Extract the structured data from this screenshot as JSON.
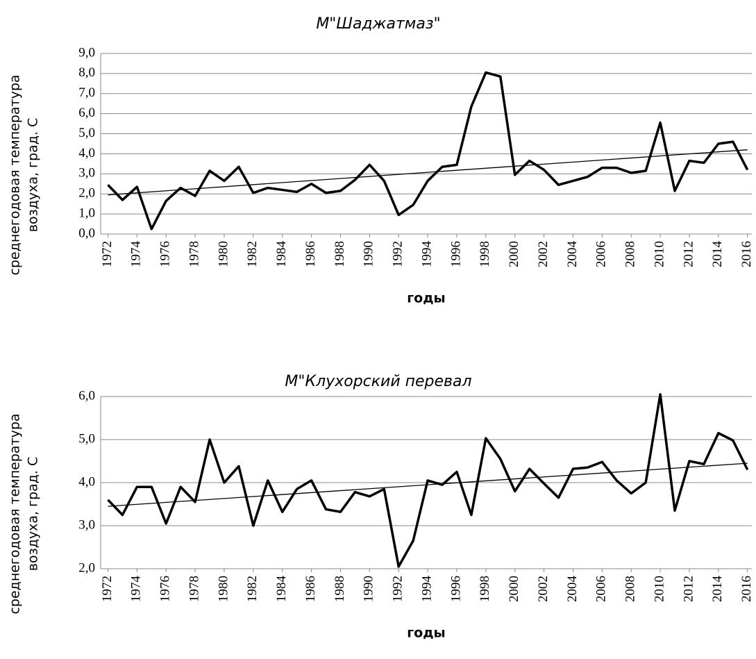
{
  "chart_data": [
    {
      "type": "line",
      "title": "М\"Шаджатмаз\"",
      "ylabel": [
        "среднегодовая температура",
        "воздуха, град. С"
      ],
      "xlabel": "годы",
      "x": [
        1972,
        1973,
        1974,
        1975,
        1976,
        1977,
        1978,
        1979,
        1980,
        1981,
        1982,
        1983,
        1984,
        1985,
        1986,
        1987,
        1988,
        1989,
        1990,
        1991,
        1992,
        1993,
        1994,
        1995,
        1996,
        1997,
        1998,
        1999,
        2000,
        2001,
        2002,
        2003,
        2004,
        2005,
        2006,
        2007,
        2008,
        2009,
        2010,
        2011,
        2012,
        2013,
        2014,
        2015,
        2016
      ],
      "series": [
        {
          "color": "#000000",
          "values": [
            2.45,
            1.7,
            2.35,
            0.25,
            1.65,
            2.3,
            1.9,
            3.15,
            2.65,
            3.35,
            2.05,
            2.3,
            2.2,
            2.1,
            2.5,
            2.05,
            2.15,
            2.7,
            3.45,
            2.65,
            0.95,
            1.45,
            2.65,
            3.35,
            3.45,
            6.35,
            8.05,
            7.85,
            2.95,
            3.65,
            3.2,
            2.45,
            2.65,
            2.85,
            3.3,
            3.3,
            3.05,
            3.15,
            5.55,
            2.15,
            3.65,
            3.55,
            4.5,
            4.6,
            3.2
          ]
        }
      ],
      "trend": {
        "x": [
          1972,
          2016
        ],
        "values": [
          1.95,
          4.2
        ]
      },
      "xlim": [
        1971.5,
        2016.3
      ],
      "xticks": [
        1972,
        1974,
        1976,
        1978,
        1980,
        1982,
        1984,
        1986,
        1988,
        1990,
        1992,
        1994,
        1996,
        1998,
        2000,
        2002,
        2004,
        2006,
        2008,
        2010,
        2012,
        2014,
        2016
      ],
      "ylim": [
        0,
        9
      ],
      "yticks": [
        {
          "value": 0,
          "label": "0,0"
        },
        {
          "value": 1,
          "label": "1,0"
        },
        {
          "value": 2,
          "label": "2,0"
        },
        {
          "value": 3,
          "label": "3,0"
        },
        {
          "value": 4,
          "label": "4,0"
        },
        {
          "value": 5,
          "label": "5,0"
        },
        {
          "value": 6,
          "label": "6,0"
        },
        {
          "value": 7,
          "label": "7,0"
        },
        {
          "value": 8,
          "label": "8,0"
        },
        {
          "value": 9,
          "label": "9,0"
        }
      ],
      "grid": true
    },
    {
      "type": "line",
      "title": "М\"Клухорский перевал",
      "ylabel": [
        "среднегодовая температура",
        "воздуха, град. С"
      ],
      "xlabel": "годы",
      "x": [
        1972,
        1973,
        1974,
        1975,
        1976,
        1977,
        1978,
        1979,
        1980,
        1981,
        1982,
        1983,
        1984,
        1985,
        1986,
        1987,
        1988,
        1989,
        1990,
        1991,
        1992,
        1993,
        1994,
        1995,
        1996,
        1997,
        1998,
        1999,
        2000,
        2001,
        2002,
        2003,
        2004,
        2005,
        2006,
        2007,
        2008,
        2009,
        2010,
        2011,
        2012,
        2013,
        2014,
        2015,
        2016
      ],
      "series": [
        {
          "color": "#000000",
          "values": [
            3.6,
            3.25,
            3.9,
            3.9,
            3.05,
            3.9,
            3.55,
            5.0,
            4.0,
            4.38,
            3.0,
            4.05,
            3.32,
            3.85,
            4.05,
            3.38,
            3.32,
            3.78,
            3.68,
            3.85,
            2.05,
            2.65,
            4.05,
            3.95,
            4.25,
            3.25,
            5.03,
            4.55,
            3.8,
            4.32,
            3.98,
            3.65,
            4.32,
            4.35,
            4.48,
            4.05,
            3.75,
            4.0,
            6.05,
            3.35,
            4.5,
            4.43,
            5.15,
            4.98,
            4.3
          ]
        }
      ],
      "trend": {
        "x": [
          1972,
          2016
        ],
        "values": [
          3.45,
          4.45
        ]
      },
      "xlim": [
        1971.5,
        2016.3
      ],
      "xticks": [
        1972,
        1974,
        1976,
        1978,
        1980,
        1982,
        1984,
        1986,
        1988,
        1990,
        1992,
        1994,
        1996,
        1998,
        2000,
        2002,
        2004,
        2006,
        2008,
        2010,
        2012,
        2014,
        2016
      ],
      "ylim": [
        2,
        6
      ],
      "yticks": [
        {
          "value": 2,
          "label": "2,0"
        },
        {
          "value": 3,
          "label": "3,0"
        },
        {
          "value": 4,
          "label": "4,0"
        },
        {
          "value": 5,
          "label": "5,0"
        },
        {
          "value": 6,
          "label": "6,0"
        }
      ],
      "grid": true
    }
  ]
}
